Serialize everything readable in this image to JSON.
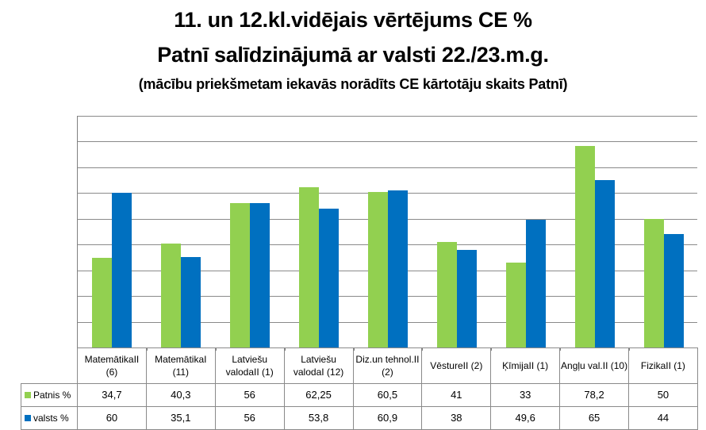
{
  "title": {
    "line1": "11. un 12.kl.vidējais vērtējums CE %",
    "line2": "Patnī salīdzinājumā  ar valsti 22./23.m.g.",
    "line3": "(mācību priekšmetam iekavās norādīts CE kārtotāju skaits Patnī)"
  },
  "colors": {
    "patnis": "#92D050",
    "valsts": "#0070C0",
    "grid": "#8a8a8a"
  },
  "table": {
    "categories": [
      "MatemātikaII (6)",
      "MatemātikaI (11)",
      "Latviešu valodaII (1)",
      "Latviešu valodaI (12)",
      "Diz.un tehnol.II (2)",
      "VēstureII (2)",
      "ĶīmijaII (1)",
      "Angļu val.II (10)",
      "FizikaII (1)"
    ],
    "rows": [
      {
        "label": "Patnis %",
        "values": [
          "34,7",
          "40,3",
          "56",
          "62,25",
          "60,5",
          "41",
          "33",
          "78,2",
          "50"
        ]
      },
      {
        "label": "valsts %",
        "values": [
          "60",
          "35,1",
          "56",
          "53,8",
          "60,9",
          "38",
          "49,6",
          "65",
          "44"
        ]
      }
    ]
  },
  "chart_data": {
    "type": "bar",
    "title": "11. un 12.kl.vidējais vērtējums CE % Patnī salīdzinājumā ar valsti 22./23.m.g. (mācību priekšmetam iekavās norādīts CE kārtotāju skaits Patnī)",
    "categories": [
      "MatemātikaII (6)",
      "MatemātikaI (11)",
      "Latviešu valodaII (1)",
      "Latviešu valodaI (12)",
      "Diz.un tehnol.II (2)",
      "VēstureII (2)",
      "ĶīmijaII (1)",
      "Angļu val.II (10)",
      "FizikaII (1)"
    ],
    "series": [
      {
        "name": "Patnis %",
        "color": "#92D050",
        "values": [
          34.7,
          40.3,
          56,
          62.25,
          60.5,
          41,
          33,
          78.2,
          50
        ]
      },
      {
        "name": "valsts %",
        "color": "#0070C0",
        "values": [
          60,
          35.1,
          56,
          53.8,
          60.9,
          38,
          49.6,
          65,
          44
        ]
      }
    ],
    "xlabel": "",
    "ylabel": "",
    "ylim": [
      0,
      90
    ],
    "grid": true,
    "grid_step": 10,
    "y_tick_labels_visible": false,
    "legend_position": "data-table"
  }
}
